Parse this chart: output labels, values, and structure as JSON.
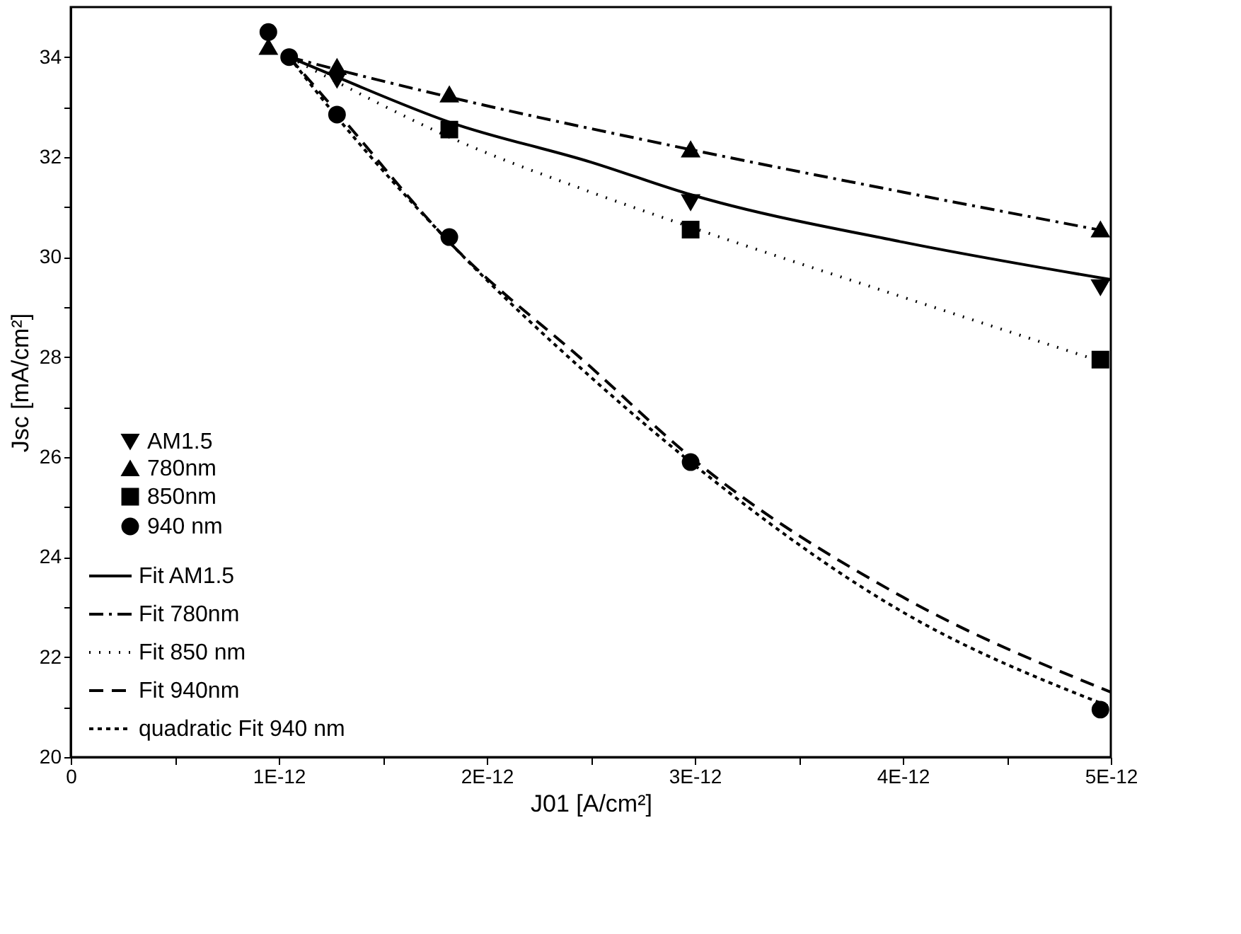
{
  "chart_data": {
    "type": "scatter",
    "xlabel": "J01 [A/cm²]",
    "ylabel": "Jsc [mA/cm²]",
    "xlim": [
      0,
      5e-12
    ],
    "ylim": [
      20,
      35
    ],
    "xticks": [
      0,
      {
        "value": 5e-13,
        "label": null
      },
      {
        "value": 1e-12,
        "label": "1E-12"
      },
      {
        "value": 1.5e-12,
        "label": null
      },
      {
        "value": 2e-12,
        "label": "2E-12"
      },
      {
        "value": 2.5e-12,
        "label": null
      },
      {
        "value": 3e-12,
        "label": "3E-12"
      },
      {
        "value": 3.5e-12,
        "label": null
      },
      {
        "value": 4e-12,
        "label": "4E-12"
      },
      {
        "value": 4.5e-12,
        "label": null
      },
      {
        "value": 5e-12,
        "label": "5E-12"
      }
    ],
    "yticks": [
      20,
      {
        "value": 21,
        "label": null
      },
      22,
      {
        "value": 23,
        "label": null
      },
      24,
      {
        "value": 25,
        "label": null
      },
      26,
      {
        "value": 27,
        "label": null
      },
      28,
      {
        "value": 29,
        "label": null
      },
      30,
      {
        "value": 31,
        "label": null
      },
      32,
      {
        "value": 33,
        "label": null
      },
      34
    ],
    "grid": false,
    "legend": "bottom left",
    "series": [
      {
        "name": "AM1.5",
        "marker": "triangle-down",
        "color": "#000000",
        "x": [
          1.28e-12,
          2.98e-12,
          4.95e-12
        ],
        "values": [
          33.55,
          31.1,
          29.4
        ]
      },
      {
        "name": "780nm",
        "marker": "triangle",
        "color": "#000000",
        "x": [
          9.5e-13,
          1.05e-12,
          1.28e-12,
          1.82e-12,
          2.98e-12,
          4.95e-12
        ],
        "values": [
          34.2,
          null,
          33.8,
          33.25,
          32.15,
          30.55
        ]
      },
      {
        "name": "850nm",
        "marker": "square",
        "color": "#000000",
        "x": [
          1.82e-12,
          2.98e-12,
          4.95e-12
        ],
        "values": [
          32.55,
          30.55,
          27.95
        ]
      },
      {
        "name": "940 nm",
        "marker": "circle",
        "color": "#000000",
        "x": [
          9.5e-13,
          1.05e-12,
          1.28e-12,
          1.82e-12,
          2.98e-12,
          4.95e-12
        ],
        "values": [
          34.5,
          34.0,
          32.85,
          30.4,
          25.9,
          20.95
        ]
      },
      {
        "name": "Fit AM1.5",
        "type": "line",
        "line_style": "solid",
        "color": "#000000",
        "x": [
          1.05e-12,
          1.28e-12,
          1.82e-12,
          2.5e-12,
          2.98e-12,
          4e-12,
          5e-12
        ],
        "values": [
          34.0,
          33.6,
          32.7,
          31.9,
          31.25,
          30.3,
          29.55
        ]
      },
      {
        "name": "Fit 780nm",
        "type": "line",
        "line_style": "dashdot",
        "color": "#000000",
        "x": [
          1.05e-12,
          1.28e-12,
          1.82e-12,
          2.98e-12,
          4e-12,
          5e-12
        ],
        "values": [
          34.0,
          33.75,
          33.2,
          32.15,
          31.3,
          30.5
        ]
      },
      {
        "name": "Fit 850 nm",
        "type": "line",
        "line_style": "dotted",
        "color": "#000000",
        "x": [
          1.05e-12,
          1.28e-12,
          1.82e-12,
          2.5e-12,
          2.98e-12,
          4e-12,
          5e-12
        ],
        "values": [
          34.0,
          33.5,
          32.4,
          31.3,
          30.6,
          29.2,
          27.85
        ]
      },
      {
        "name": "Fit 940nm",
        "type": "line",
        "line_style": "dashed",
        "color": "#000000",
        "x": [
          1.05e-12,
          1.28e-12,
          1.82e-12,
          2.5e-12,
          2.98e-12,
          4e-12,
          5e-12
        ],
        "values": [
          34.0,
          32.9,
          30.3,
          27.8,
          26.0,
          23.2,
          21.3
        ]
      },
      {
        "name": "quadratic Fit 940 nm",
        "type": "line",
        "line_style": "densely_dotted",
        "color": "#000000",
        "x": [
          1.05e-12,
          1.28e-12,
          1.82e-12,
          2.5e-12,
          2.98e-12,
          4e-12,
          5e-12
        ],
        "values": [
          34.0,
          32.8,
          30.3,
          27.6,
          25.9,
          22.9,
          21.0
        ]
      }
    ]
  }
}
